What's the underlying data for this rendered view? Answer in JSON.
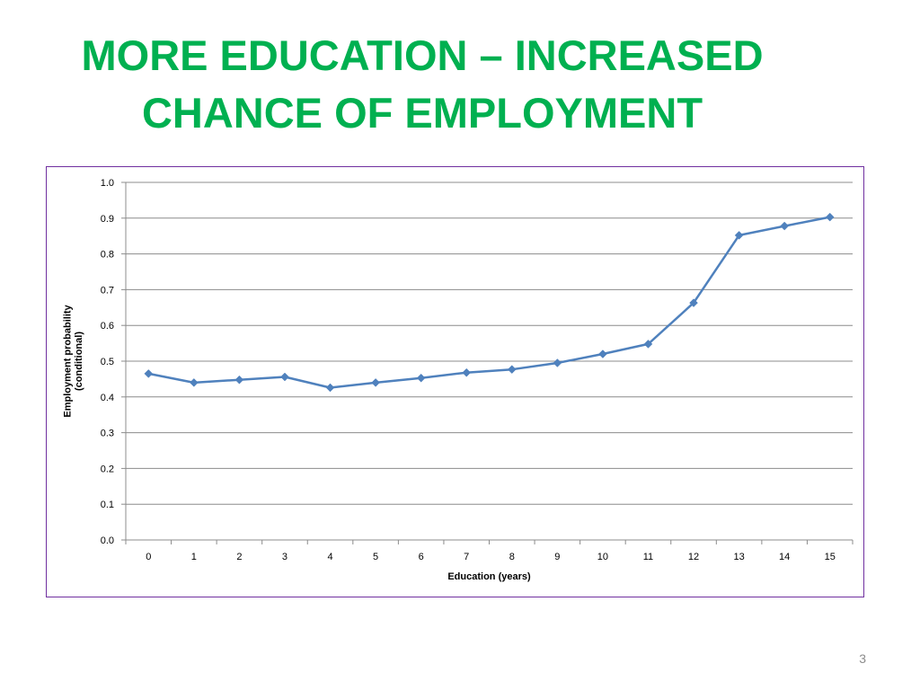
{
  "slide": {
    "title_line1": "MORE EDUCATION – INCREASED",
    "title_line2": "CHANCE OF EMPLOYMENT",
    "number": "3"
  },
  "colors": {
    "title": "#00b050",
    "border": "#7030a0",
    "series": "#4f81bd",
    "gridline": "#8c8c8c"
  },
  "chart_data": {
    "type": "line",
    "title": "",
    "xlabel": "Education (years)",
    "ylabel": "Employment probability\n(conditional)",
    "ylabel_lines": [
      "Employment probability",
      "(conditional)"
    ],
    "ylim": [
      0.0,
      1.0
    ],
    "yticks": [
      "0.0",
      "0.1",
      "0.2",
      "0.3",
      "0.4",
      "0.5",
      "0.6",
      "0.7",
      "0.8",
      "0.9",
      "1.0"
    ],
    "categories": [
      "0",
      "1",
      "2",
      "3",
      "4",
      "5",
      "6",
      "7",
      "8",
      "9",
      "10",
      "11",
      "12",
      "13",
      "14",
      "15"
    ],
    "series": [
      {
        "marker": "diamond",
        "values": [
          0.465,
          0.44,
          0.448,
          0.456,
          0.426,
          0.44,
          0.453,
          0.468,
          0.477,
          0.495,
          0.52,
          0.548,
          0.663,
          0.852,
          0.878,
          0.903
        ]
      }
    ],
    "grid": true,
    "legend": "none"
  }
}
